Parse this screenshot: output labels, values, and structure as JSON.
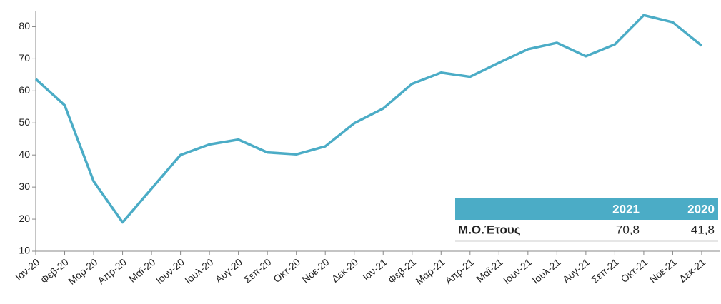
{
  "chart_data": {
    "type": "line",
    "categories": [
      "Ιαν-20",
      "Φεβ-20",
      "Μαρ-20",
      "Απρ-20",
      "Μαϊ-20",
      "Ιουν-20",
      "Ιουλ-20",
      "Αυγ-20",
      "Σεπ-20",
      "Οκτ-20",
      "Νοε-20",
      "Δεκ-20",
      "Ιαν-21",
      "Φεβ-21",
      "Μαρ-21",
      "Απρ-21",
      "Μαϊ-21",
      "Ιουν-21",
      "Ιουλ-21",
      "Αυγ-21",
      "Σεπ-21",
      "Οκτ-21",
      "Νοε-21",
      "Δεκ-21"
    ],
    "series": [
      {
        "color": "#4bacc6",
        "values": [
          63.7,
          55.5,
          31.8,
          19,
          29.5,
          40,
          43.3,
          44.8,
          40.8,
          40.2,
          42.7,
          49.9,
          54.5,
          62.2,
          65.7,
          64.4,
          68.8,
          73,
          75,
          70.8,
          74.5,
          83.6,
          81.4,
          74.1
        ]
      }
    ],
    "ylim": [
      10,
      85
    ],
    "yticks": [
      10,
      20,
      30,
      40,
      50,
      60,
      70,
      80
    ]
  },
  "table": {
    "columns": [
      "2021",
      "2020"
    ],
    "rows": [
      [
        "Μ.Ο.Έτους",
        "70,8",
        "41,8"
      ]
    ]
  }
}
